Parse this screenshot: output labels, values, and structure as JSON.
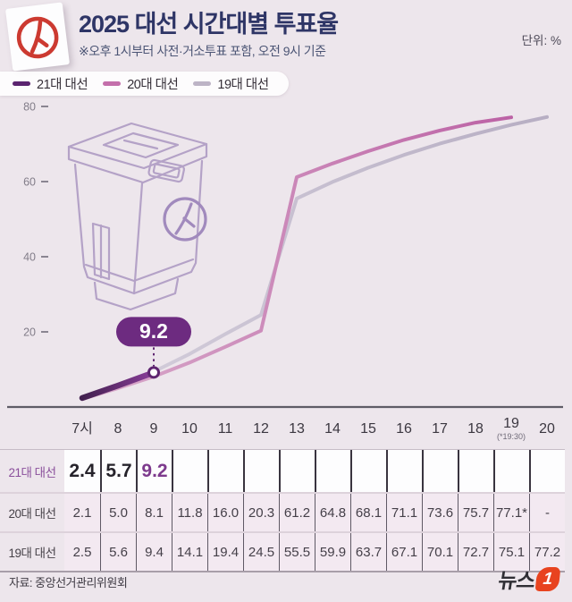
{
  "header": {
    "title": "2025 대선 시간대별 투표율",
    "subtitle": "※오후 1시부터 사전·거소투표 포함, 오전 9시 기준",
    "unit_label": "단위: %"
  },
  "legend": {
    "items": [
      {
        "label": "21대 대선",
        "color": "#5b2470"
      },
      {
        "label": "20대 대선",
        "color": "#c46fab"
      },
      {
        "label": "19대 대선",
        "color": "#bdb4c6"
      }
    ]
  },
  "chart_data": {
    "type": "line",
    "title": "2025 대선 시간대별 투표율",
    "unit": "%",
    "x": [
      "7시",
      "8",
      "9",
      "10",
      "11",
      "12",
      "13",
      "14",
      "15",
      "16",
      "17",
      "18",
      "19",
      "20"
    ],
    "x_note": {
      "column": "19",
      "text": "(*19:30)"
    },
    "ylim": [
      0,
      84
    ],
    "yticks": [
      20,
      40,
      60,
      80
    ],
    "grid": false,
    "legend_position": "top-left",
    "series": [
      {
        "name": "21대 대선",
        "color": "#5b2470",
        "color_start": "#42204f",
        "color_end": "#8a3d99",
        "width": 6.5,
        "values": [
          2.4,
          5.7,
          9.2
        ]
      },
      {
        "name": "20대 대선",
        "color": "#c46fab",
        "color_start": "#d9abcb",
        "color_end": "#bc62a5",
        "width": 4,
        "values": [
          2.1,
          5.0,
          8.1,
          11.8,
          16.0,
          20.3,
          61.2,
          64.8,
          68.1,
          71.1,
          73.6,
          75.7,
          77.1
        ]
      },
      {
        "name": "19대 대선",
        "color": "#c0b8cb",
        "color_start": "#d6d0dd",
        "color_end": "#b7aec3",
        "width": 4,
        "values": [
          2.5,
          5.6,
          9.4,
          14.1,
          19.4,
          24.5,
          55.5,
          59.9,
          63.7,
          67.1,
          70.1,
          72.7,
          75.1,
          77.2
        ]
      }
    ],
    "annotation": {
      "label": "9.2",
      "series": "21대 대선",
      "x_index": 2,
      "value": 9.2
    }
  },
  "table": {
    "columns": [
      "7시",
      "8",
      "9",
      "10",
      "11",
      "12",
      "13",
      "14",
      "15",
      "16",
      "17",
      "18",
      "19",
      "20"
    ],
    "col_note": {
      "col": "19",
      "text": "(*19:30)"
    },
    "rows": [
      {
        "label": "21대 대선",
        "highlight_value": "9.2",
        "values": [
          "2.4",
          "5.7",
          "9.2",
          "",
          "",
          "",
          "",
          "",
          "",
          "",
          "",
          "",
          "",
          ""
        ]
      },
      {
        "label": "20대 대선",
        "values": [
          "2.1",
          "5.0",
          "8.1",
          "11.8",
          "16.0",
          "20.3",
          "61.2",
          "64.8",
          "68.1",
          "71.1",
          "73.6",
          "75.7",
          "77.1*",
          "-"
        ]
      },
      {
        "label": "19대 대선",
        "values": [
          "2.5",
          "5.6",
          "9.4",
          "14.1",
          "19.4",
          "24.5",
          "55.5",
          "59.9",
          "63.7",
          "67.1",
          "70.1",
          "72.7",
          "75.1",
          "77.2"
        ]
      }
    ]
  },
  "footer": {
    "source": "자료: 중앙선거관리위원회",
    "brand_word": "뉴스",
    "brand_number": "1"
  },
  "colors": {
    "background": "#ede6ec",
    "title": "#2e3566",
    "callout_bg": "#6d2b80",
    "axis_line": "#5f5c66",
    "axis_label": "#827d89",
    "stamp_red": "#cc3a31",
    "brand_red": "#e8431f",
    "highlight_value": "#7d3a8d",
    "box_illustration": "#b4a2c7"
  }
}
